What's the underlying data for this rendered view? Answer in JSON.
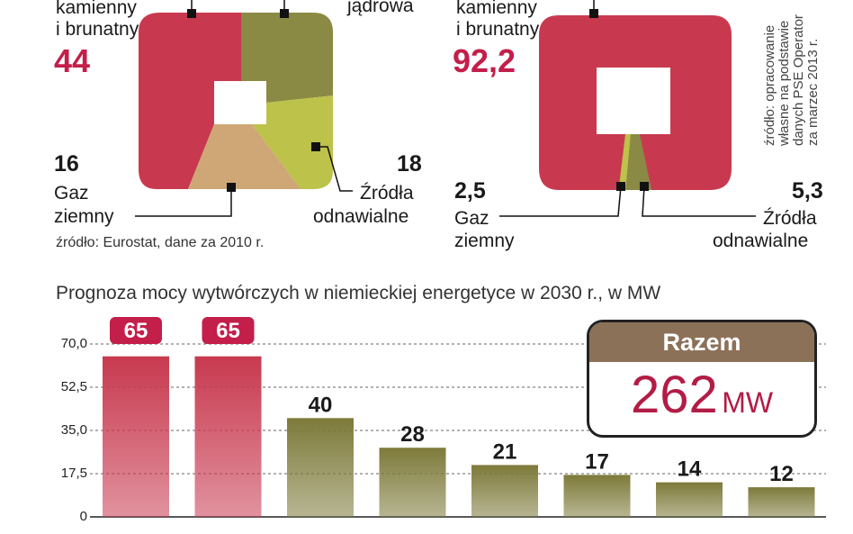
{
  "left_panel": {
    "top_label_1": "kamienny",
    "top_label_2": "i brunatny",
    "top_value": "44",
    "top_right_label": "jądrowa",
    "gas_value": "16",
    "gas_label_1": "Gaz",
    "gas_label_2": "ziemny",
    "renew_value": "18",
    "renew_label_1": "Źródła",
    "renew_label_2": "odnawialne",
    "source": "źródło: Eurostat, dane za 2010 r."
  },
  "right_panel": {
    "top_label_1": "kamienny",
    "top_label_2": "i brunatny",
    "top_value": "92,2",
    "gas_value": "2,5",
    "gas_label_1": "Gaz",
    "gas_label_2": "ziemny",
    "renew_value": "5,3",
    "renew_label_1": "Źródła",
    "renew_label_2": "odnawialne",
    "source_lines": [
      "źródło: opracowanie",
      "własne na podstawie",
      "danych PSE Operator",
      "za marzec 2013 r."
    ]
  },
  "colors": {
    "coal_red": "#c8394f",
    "nuclear_olive": "#8a8a45",
    "renew_yellow": "#bdc24a",
    "gas_tan": "#cfa776",
    "brand_red": "#c41e4a",
    "razem_brown": "#8c7159"
  },
  "razem": {
    "label": "Razem",
    "value": "262",
    "unit": "MW"
  },
  "chart_data": {
    "type": "bar",
    "title": "Prognoza mocy wytwórczych w niemieckiej energetyce w 2030 r., w MW",
    "values": [
      65,
      65,
      40,
      28,
      21,
      17,
      14,
      12
    ],
    "value_labels": [
      "65",
      "65",
      "40",
      "28",
      "21",
      "17",
      "14",
      "12"
    ],
    "y_ticks": [
      "70,0",
      "52,5",
      "35,0",
      "17,5",
      "0"
    ],
    "ylim": [
      0,
      70
    ],
    "grid": true,
    "bar_colors": [
      "#c8394f",
      "#c8394f",
      "#7d7a3a",
      "#7d7a3a",
      "#7d7a3a",
      "#7d7a3a",
      "#7d7a3a",
      "#7d7a3a"
    ]
  }
}
